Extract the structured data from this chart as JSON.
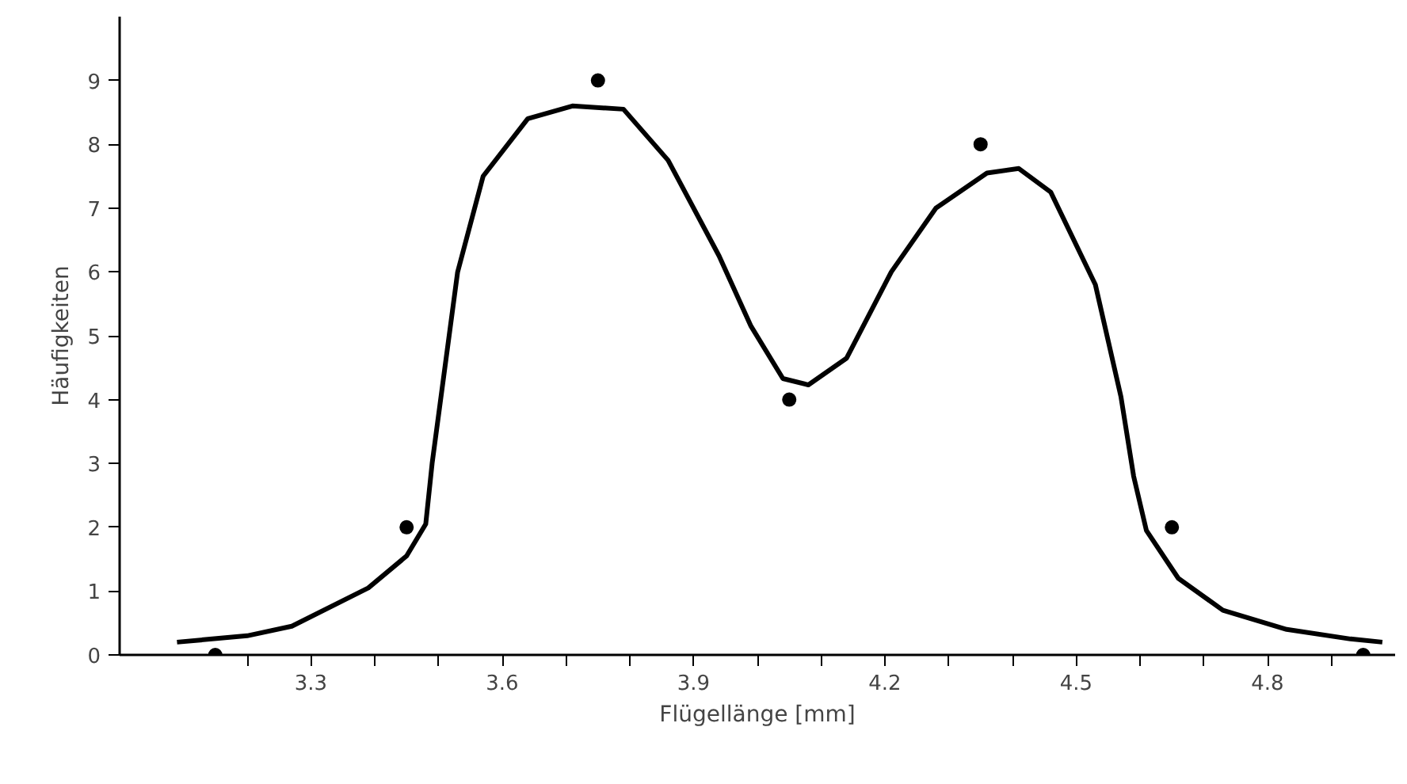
{
  "chart_data": {
    "type": "scatter",
    "xlabel": "Flügellänge [mm]",
    "ylabel": "Häufigkeiten",
    "xlim": [
      3.0,
      5.0
    ],
    "ylim": [
      0,
      10
    ],
    "xticks": [
      {
        "value": 3.2,
        "label": null
      },
      3.3,
      {
        "value": 3.4,
        "label": null
      },
      {
        "value": 3.5,
        "label": null
      },
      3.6,
      {
        "value": 3.7,
        "label": null
      },
      {
        "value": 3.8,
        "label": null
      },
      3.9,
      {
        "value": 4.0,
        "label": null
      },
      {
        "value": 4.1,
        "label": null
      },
      4.2,
      {
        "value": 4.3,
        "label": null
      },
      {
        "value": 4.4,
        "label": null
      },
      4.5,
      {
        "value": 4.6,
        "label": null
      },
      {
        "value": 4.7,
        "label": null
      },
      4.8,
      {
        "value": 4.9,
        "label": null
      }
    ],
    "yticks": [
      0,
      1,
      2,
      3,
      4,
      5,
      6,
      7,
      8,
      9
    ],
    "grid": false,
    "series": [
      {
        "marker": "circle",
        "color": "#000000",
        "x": [
          3.15,
          3.45,
          3.75,
          4.05,
          4.35,
          4.65,
          4.95
        ],
        "values": [
          0,
          2,
          9,
          4,
          8,
          2,
          0
        ]
      },
      {
        "type": "line",
        "line_style": "solid",
        "color": "#000000",
        "x": [
          3.09,
          3.2,
          3.27,
          3.39,
          3.45,
          3.48,
          3.49,
          3.53,
          3.57,
          3.64,
          3.71,
          3.79,
          3.86,
          3.94,
          3.99,
          4.04,
          4.08,
          4.14,
          4.21,
          4.28,
          4.36,
          4.41,
          4.46,
          4.53,
          4.57,
          4.59,
          4.61,
          4.66,
          4.73,
          4.83,
          4.93,
          4.98
        ],
        "values": [
          0.2,
          0.3,
          0.45,
          1.05,
          1.55,
          2.05,
          3.0,
          6.0,
          7.5,
          8.4,
          8.6,
          8.55,
          7.75,
          6.25,
          5.15,
          4.33,
          4.23,
          4.65,
          6.0,
          7.0,
          7.55,
          7.62,
          7.25,
          5.8,
          4.05,
          2.8,
          1.95,
          1.2,
          0.7,
          0.4,
          0.25,
          0.2
        ]
      }
    ]
  }
}
